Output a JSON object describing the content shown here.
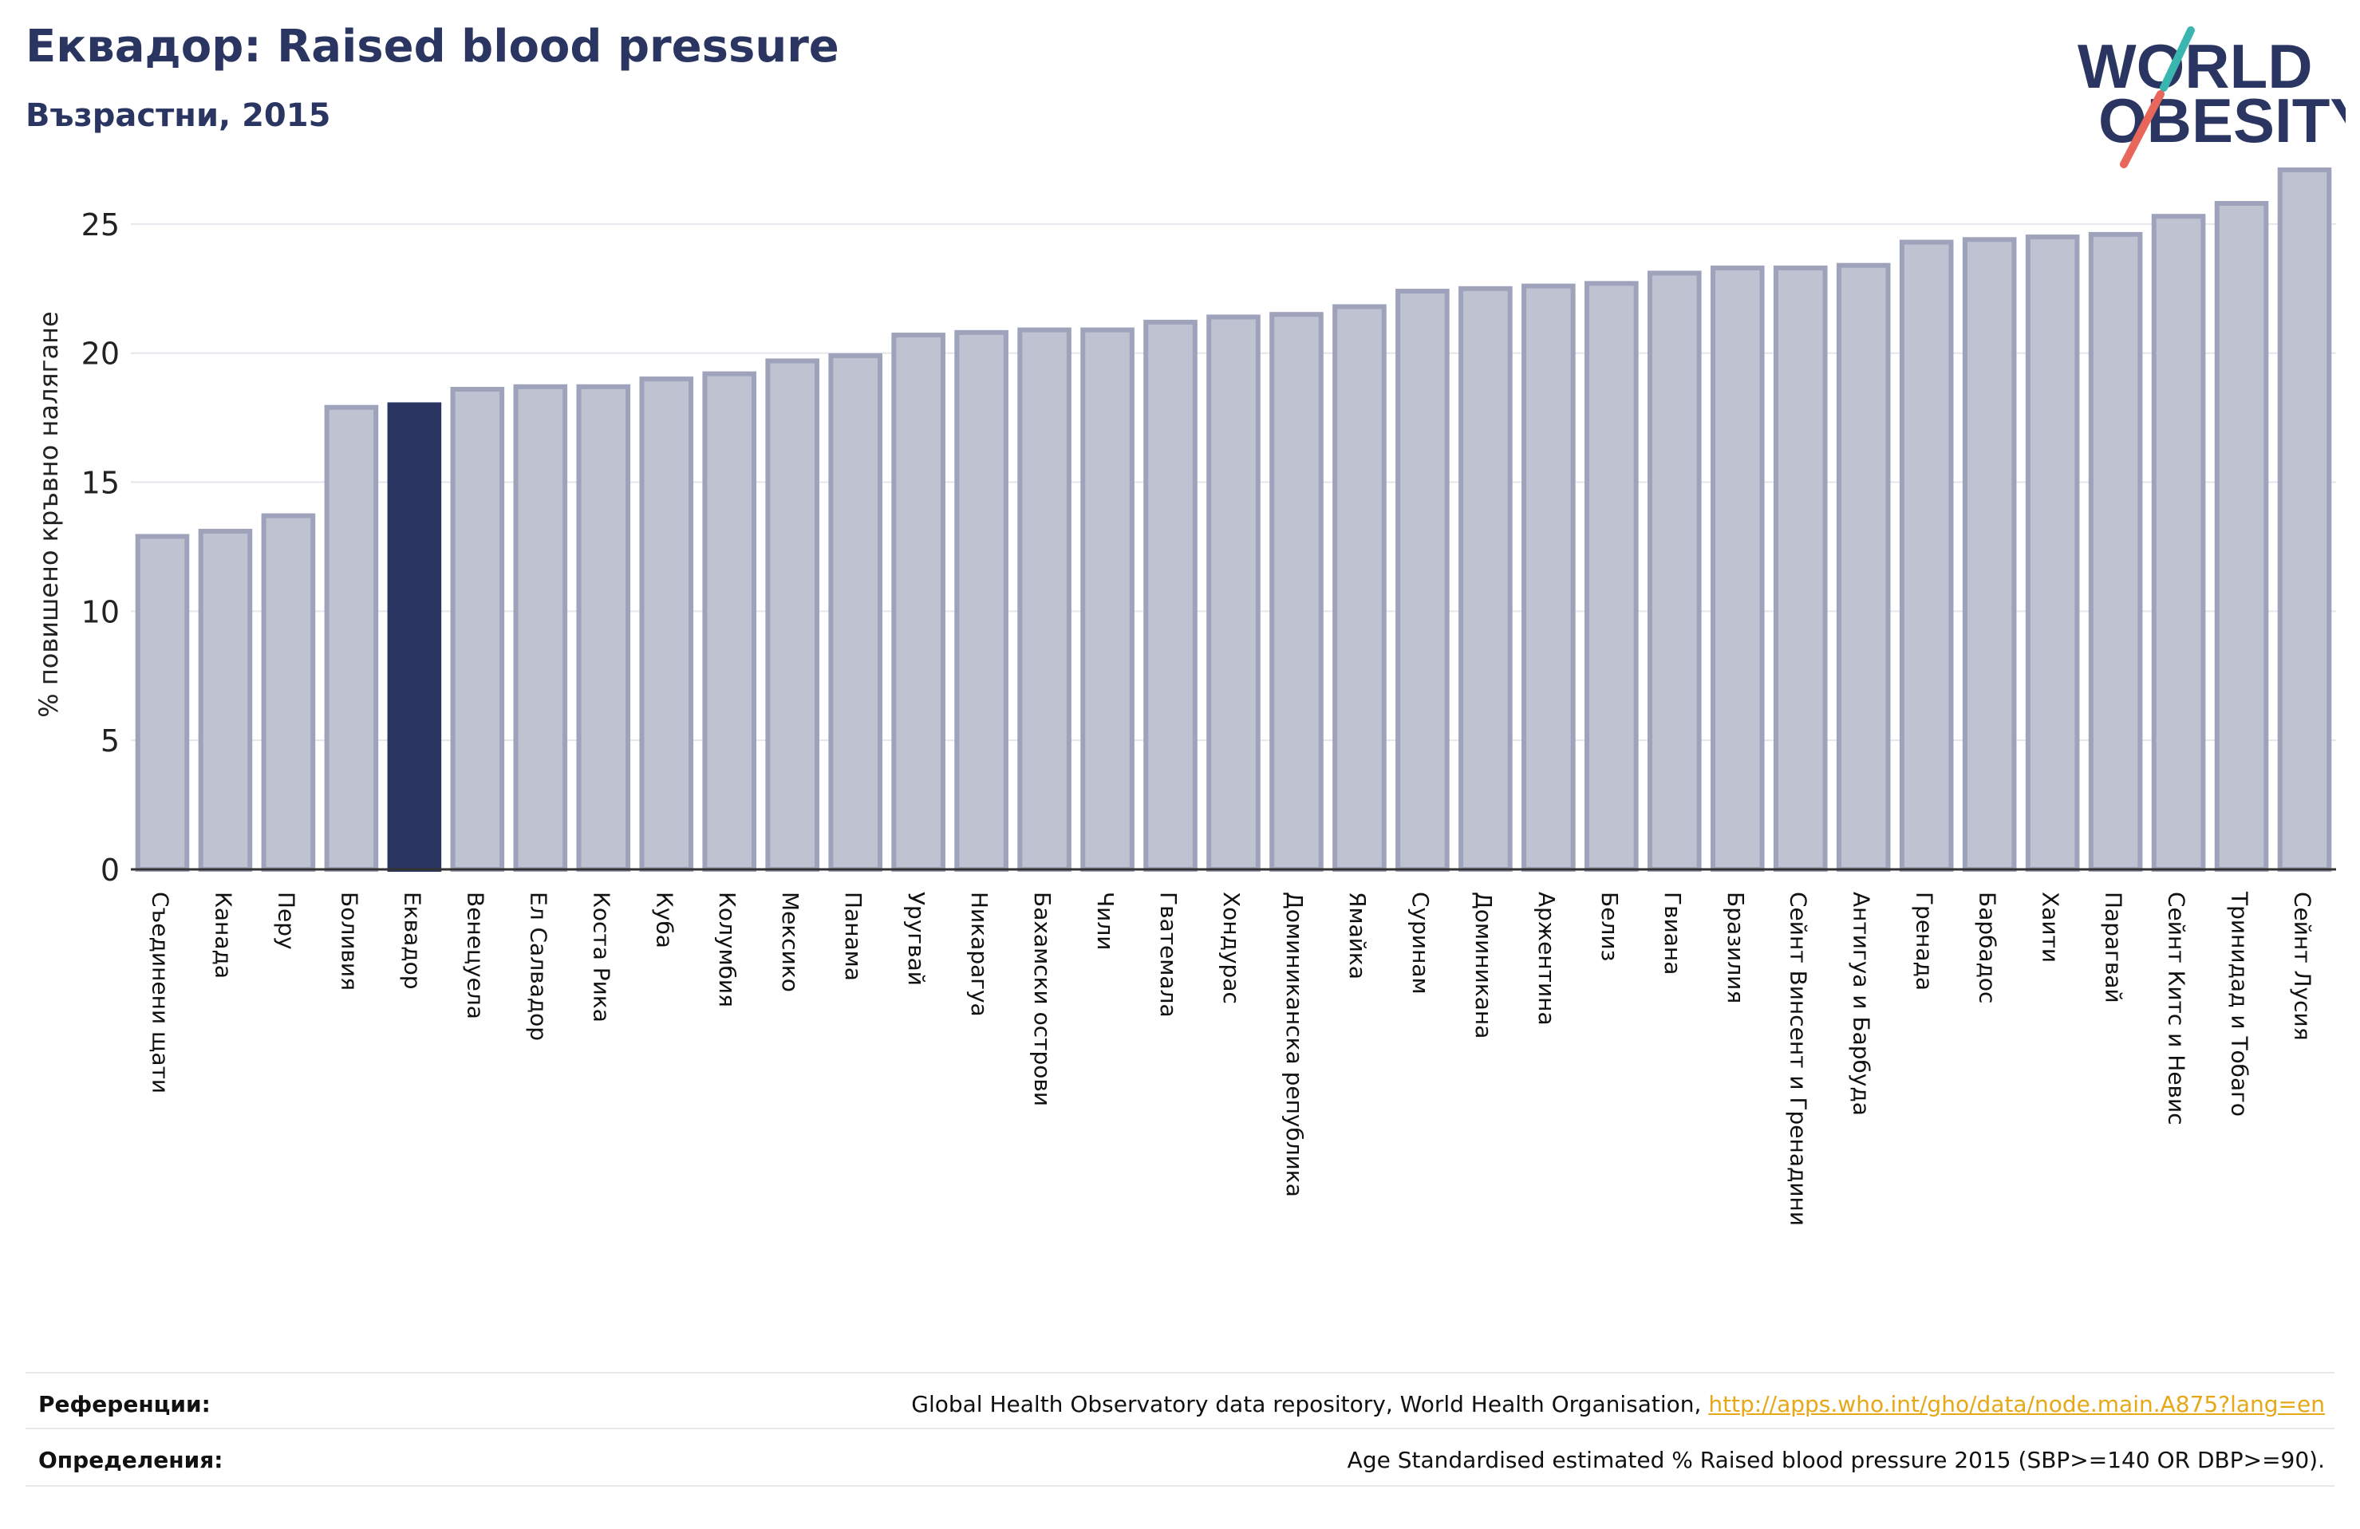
{
  "header": {
    "title": "Еквадор: Raised blood pressure",
    "subtitle": "Възрастни, 2015"
  },
  "logo": {
    "line1": "WORLD",
    "line2": "OBESITY",
    "colors": {
      "text": "#2a3561",
      "slash_teal": "#3ab5b0",
      "slash_coral": "#e8675a"
    }
  },
  "colors": {
    "bar": "#bfc2d1",
    "bar_edge": "#9ea2ba",
    "highlight": "#2a3561",
    "axis": "#333333",
    "grid": "#e6e6ec"
  },
  "chart_data": {
    "type": "bar",
    "ylabel": "% повишено кръвно налягане",
    "ylim": [
      0,
      27.5
    ],
    "yticks": [
      0,
      5,
      10,
      15,
      20,
      25
    ],
    "grid": true,
    "highlight": "Еквадор",
    "categories": [
      "Съединени щати",
      "Канада",
      "Перу",
      "Боливия",
      "Еквадор",
      "Венецуела",
      "Ел Салвадор",
      "Коста Рика",
      "Куба",
      "Колумбия",
      "Мексико",
      "Панама",
      "Уругвай",
      "Никарагуа",
      "Бахамски острови",
      "Чили",
      "Гватемала",
      "Хондурас",
      "Доминиканска република",
      "Ямайка",
      "Суринам",
      "Доминикана",
      "Аржентина",
      "Белиз",
      "Гвиана",
      "Бразилия",
      "Сейнт Винсент и Гренадини",
      "Антигуа и Барбуда",
      "Гренада",
      "Барбадос",
      "Хаити",
      "Парагвай",
      "Сейнт Китс и Невис",
      "Тринидад и Тобаго",
      "Сейнт Лусия"
    ],
    "values": [
      12.9,
      13.1,
      13.7,
      17.9,
      18.0,
      18.6,
      18.7,
      18.7,
      19.0,
      19.2,
      19.7,
      19.9,
      20.7,
      20.8,
      20.9,
      20.9,
      21.2,
      21.4,
      21.5,
      21.8,
      22.4,
      22.5,
      22.6,
      22.7,
      23.1,
      23.3,
      23.3,
      23.4,
      24.3,
      24.4,
      24.5,
      24.6,
      25.3,
      25.8,
      27.1
    ]
  },
  "footer": {
    "references_label": "Референции:",
    "references_text": "Global Health Observatory data repository, World Health Organisation, ",
    "references_link": "http://apps.who.int/gho/data/node.main.A875?lang=en",
    "definitions_label": "Определения:",
    "definitions_text": "Age Standardised estimated % Raised blood pressure 2015 (SBP>=140 OR DBP>=90)."
  }
}
